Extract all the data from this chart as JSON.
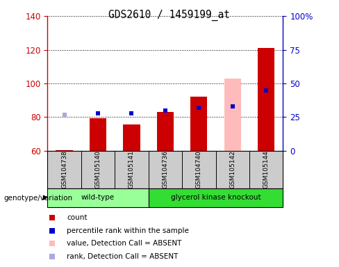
{
  "title": "GDS2610 / 1459199_at",
  "samples": [
    "GSM104738",
    "GSM105140",
    "GSM105141",
    "GSM104736",
    "GSM104740",
    "GSM105142",
    "GSM105144"
  ],
  "groups": {
    "wild-type": [
      0,
      1,
      2
    ],
    "glycerol kinase knockout": [
      3,
      4,
      5,
      6
    ]
  },
  "group_colors": {
    "wild-type": "#99ff99",
    "glycerol kinase knockout": "#33dd33"
  },
  "ylim_left": [
    60,
    140
  ],
  "ylim_right": [
    0,
    100
  ],
  "yticks_left": [
    60,
    80,
    100,
    120,
    140
  ],
  "yticks_right": [
    0,
    25,
    50,
    75,
    100
  ],
  "yticklabels_right": [
    "0",
    "25",
    "50",
    "75",
    "100%"
  ],
  "bar_bottom": 60,
  "count_values": [
    60.3,
    79.5,
    75.5,
    83.0,
    92.0,
    103.0,
    121.0
  ],
  "count_absent": [
    false,
    false,
    false,
    false,
    false,
    true,
    false
  ],
  "rank_values_pct": [
    27,
    28,
    28,
    30,
    32,
    33,
    45
  ],
  "rank_absent": [
    true,
    false,
    false,
    false,
    false,
    false,
    false
  ],
  "bar_color_normal": "#cc0000",
  "bar_color_absent": "#ffbbbb",
  "rank_color_normal": "#0000cc",
  "rank_color_absent": "#aaaadd",
  "left_axis_color": "#cc0000",
  "right_axis_color": "#0000cc",
  "plot_bg_color": "#ffffff",
  "grid_color": "#000000",
  "bar_width": 0.5,
  "legend_items": [
    {
      "label": "count",
      "color": "#cc0000"
    },
    {
      "label": "percentile rank within the sample",
      "color": "#0000cc"
    },
    {
      "label": "value, Detection Call = ABSENT",
      "color": "#ffbbbb"
    },
    {
      "label": "rank, Detection Call = ABSENT",
      "color": "#aaaadd"
    }
  ]
}
